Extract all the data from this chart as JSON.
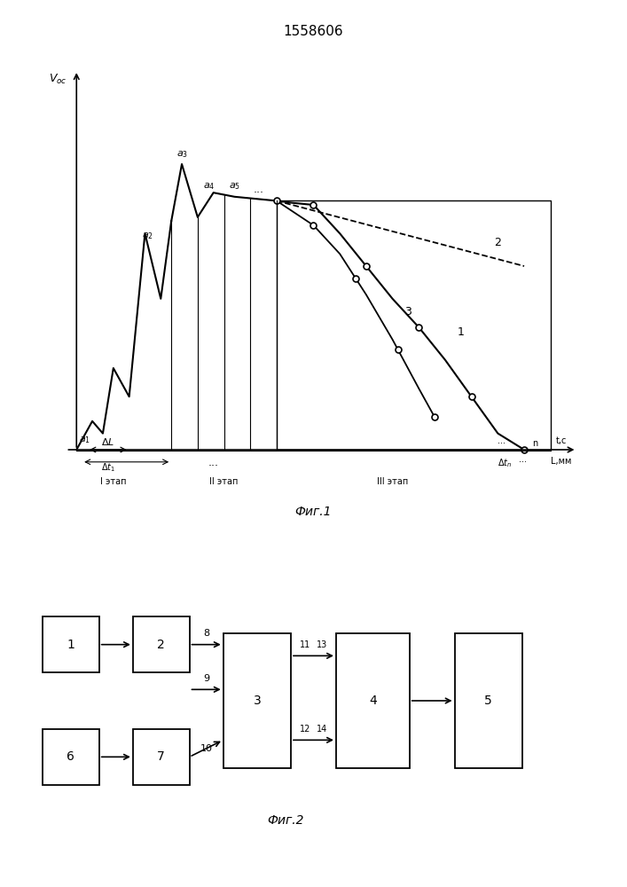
{
  "title": "1558606",
  "fig1_caption": "Фиг.1",
  "fig2_caption": "Фиг.2",
  "background_color": "#ffffff",
  "line_color": "#000000",
  "curve1_color": "#000000",
  "curve2_color": "#000000",
  "curve3_color": "#000000"
}
